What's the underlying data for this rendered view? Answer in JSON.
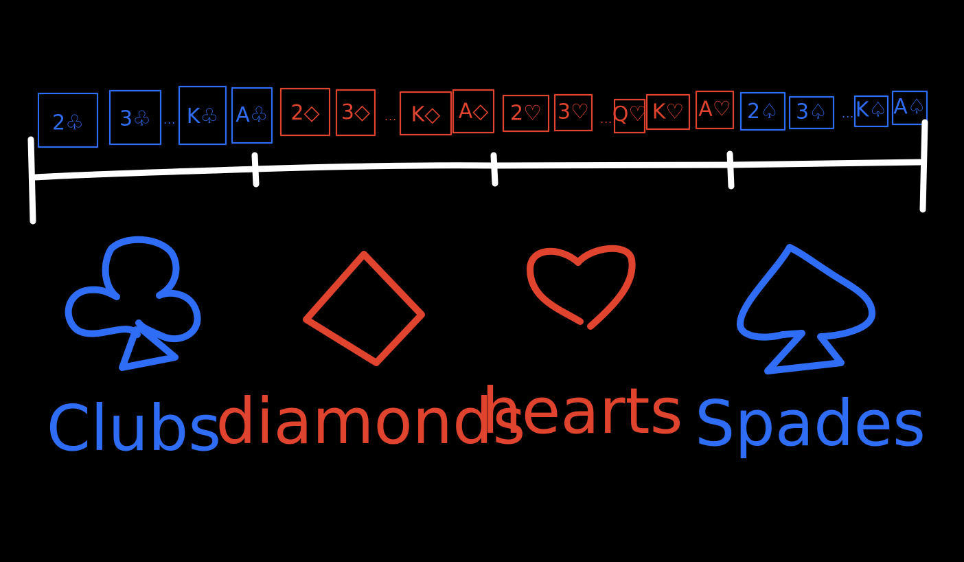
{
  "colors": {
    "background": "#000000",
    "black_suit": "#2f6df6",
    "red_suit": "#e0432e",
    "axis": "#ffffff"
  },
  "deck_row": [
    {
      "text": "2♧",
      "suit": "clubs",
      "color_role": "black_suit"
    },
    {
      "text": "3♧",
      "suit": "clubs",
      "color_role": "black_suit"
    },
    {
      "text": "...",
      "ellipsis": true,
      "color_role": "black_suit"
    },
    {
      "text": "K♧",
      "suit": "clubs",
      "color_role": "black_suit"
    },
    {
      "text": "A♧",
      "suit": "clubs",
      "color_role": "black_suit"
    },
    {
      "text": "2◇",
      "suit": "diamonds",
      "color_role": "red_suit"
    },
    {
      "text": "3◇",
      "suit": "diamonds",
      "color_role": "red_suit"
    },
    {
      "text": "...",
      "ellipsis": true,
      "color_role": "red_suit"
    },
    {
      "text": "K◇",
      "suit": "diamonds",
      "color_role": "red_suit"
    },
    {
      "text": "A◇",
      "suit": "diamonds",
      "color_role": "red_suit"
    },
    {
      "text": "2♡",
      "suit": "hearts",
      "color_role": "red_suit"
    },
    {
      "text": "3♡",
      "suit": "hearts",
      "color_role": "red_suit"
    },
    {
      "text": "...",
      "ellipsis": true,
      "color_role": "red_suit"
    },
    {
      "text": "Q♡",
      "suit": "hearts",
      "color_role": "red_suit"
    },
    {
      "text": "K♡",
      "suit": "hearts",
      "color_role": "red_suit"
    },
    {
      "text": "A♡",
      "suit": "hearts",
      "color_role": "red_suit"
    },
    {
      "text": "2♤",
      "suit": "spades",
      "color_role": "black_suit"
    },
    {
      "text": "3♤",
      "suit": "spades",
      "color_role": "black_suit"
    },
    {
      "text": "...",
      "ellipsis": true,
      "color_role": "black_suit"
    },
    {
      "text": "K♤",
      "suit": "spades",
      "color_role": "black_suit"
    },
    {
      "text": "A♤",
      "suit": "spades",
      "color_role": "black_suit"
    }
  ],
  "suits": [
    {
      "label": "Clubs",
      "icon": "club-icon",
      "color_role": "black_suit"
    },
    {
      "label": "diamonds",
      "icon": "diamond-icon",
      "color_role": "red_suit"
    },
    {
      "label": "hearts",
      "icon": "heart-icon",
      "color_role": "red_suit"
    },
    {
      "label": "Spades",
      "icon": "spade-icon",
      "color_role": "black_suit"
    }
  ]
}
